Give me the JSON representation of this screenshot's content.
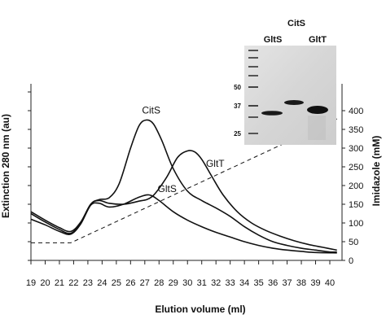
{
  "chart_data": {
    "type": "line",
    "title": "",
    "xlabel": "Elution volume (ml)",
    "ylabel_left": "Extinction 280 nm (au)",
    "ylabel_right": "Imidazole (mM)",
    "xlim": [
      19,
      40.5
    ],
    "x_ticks": [
      19,
      20,
      21,
      22,
      23,
      24,
      25,
      26,
      27,
      28,
      29,
      30,
      31,
      32,
      33,
      34,
      35,
      36,
      37,
      38,
      39,
      40
    ],
    "ylim_right": [
      0,
      450
    ],
    "y_ticks_right": [
      0,
      50,
      100,
      150,
      200,
      250,
      300,
      350,
      400
    ],
    "ylim_left": [
      0,
      10
    ],
    "y_ticks_left": [
      0,
      1,
      2,
      3,
      4,
      5,
      6,
      7,
      8,
      9,
      10
    ],
    "series": [
      {
        "name": "CitS",
        "axis": "left",
        "x": [
          19,
          20,
          21,
          21.8,
          22.5,
          23.2,
          23.8,
          24.5,
          25.2,
          26,
          26.6,
          27.1,
          27.6,
          28.2,
          29,
          30,
          31,
          32,
          33,
          34,
          35,
          36,
          37,
          38,
          39,
          40,
          40.5
        ],
        "y": [
          2.5,
          2.05,
          1.65,
          1.45,
          2.0,
          3.0,
          3.25,
          3.35,
          4.1,
          6.0,
          7.2,
          7.5,
          7.3,
          6.4,
          4.9,
          3.7,
          3.2,
          2.8,
          2.35,
          1.8,
          1.35,
          1.0,
          0.8,
          0.65,
          0.55,
          0.45,
          0.45
        ]
      },
      {
        "name": "GltT",
        "axis": "left",
        "x": [
          19,
          20,
          21,
          21.8,
          22.5,
          23.2,
          23.8,
          24.5,
          25.5,
          26.5,
          27.5,
          28.5,
          29.3,
          30,
          30.5,
          31,
          31.7,
          32.5,
          33.5,
          34.5,
          35.5,
          36.5,
          37.5,
          38.5,
          39.5,
          40.5
        ],
        "y": [
          2.6,
          2.15,
          1.75,
          1.55,
          2.05,
          3.0,
          3.2,
          3.05,
          3.0,
          3.15,
          3.4,
          4.4,
          5.5,
          5.85,
          5.8,
          5.4,
          4.5,
          3.5,
          2.6,
          2.0,
          1.6,
          1.3,
          1.05,
          0.85,
          0.7,
          0.55
        ]
      },
      {
        "name": "GltS",
        "axis": "left",
        "x": [
          19,
          20,
          21,
          21.8,
          22.5,
          23.2,
          23.8,
          24.5,
          25.5,
          26.5,
          27.3,
          28,
          29,
          30,
          31,
          32,
          33,
          34,
          35,
          36,
          37,
          38,
          39,
          40.5
        ],
        "y": [
          2.2,
          1.9,
          1.55,
          1.4,
          1.95,
          2.95,
          3.05,
          2.85,
          3.0,
          3.35,
          3.5,
          3.2,
          2.6,
          2.15,
          1.8,
          1.5,
          1.25,
          1.0,
          0.8,
          0.65,
          0.55,
          0.48,
          0.42,
          0.4
        ]
      },
      {
        "name": "Imidazole",
        "axis": "right",
        "x": [
          19,
          21.8,
          40.5
        ],
        "y": [
          47,
          47,
          378
        ]
      }
    ],
    "annotations": [
      {
        "text": "CitS",
        "x": 26.8,
        "y": 7.85
      },
      {
        "text": "GltT",
        "x": 31.3,
        "y": 5.0
      },
      {
        "text": "GltS",
        "x": 27.9,
        "y": 3.65
      }
    ],
    "grid": false,
    "legend": "none"
  },
  "inset_gel": {
    "header": "CitS",
    "lanes": [
      "GltS",
      "GltT"
    ],
    "markers": [
      "50",
      "37",
      "25"
    ]
  }
}
